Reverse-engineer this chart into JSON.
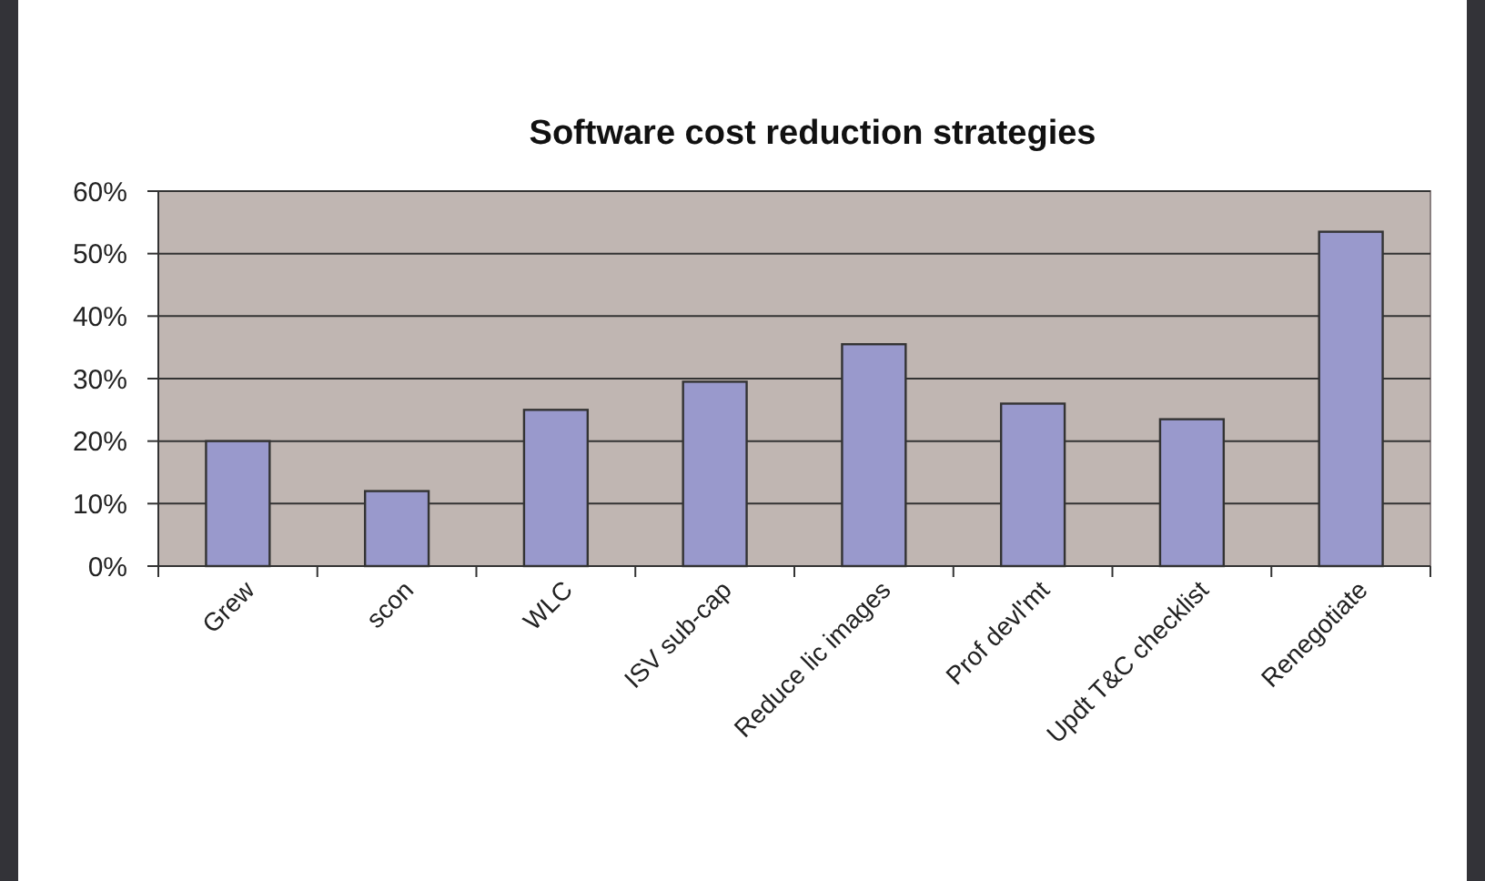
{
  "chart_data": {
    "type": "bar",
    "title": "Software cost reduction strategies",
    "categories": [
      "Grew",
      "scon",
      "WLC",
      "ISV sub-cap",
      "Reduce lic images",
      "Prof devl'mt",
      "Updt T&C checklist",
      "Renegotiate"
    ],
    "values": [
      20,
      12,
      25,
      29.5,
      35.5,
      26,
      23.5,
      53.5
    ],
    "color": "#9999cc",
    "ylim": [
      0,
      60
    ],
    "yticks": [
      {
        "value": 0,
        "label": "0%"
      },
      {
        "value": 10,
        "label": "10%"
      },
      {
        "value": 20,
        "label": "20%"
      },
      {
        "value": 30,
        "label": "30%"
      },
      {
        "value": 40,
        "label": "40%"
      },
      {
        "value": 50,
        "label": "50%"
      },
      {
        "value": 60,
        "label": "60%"
      }
    ],
    "grid": "y"
  }
}
